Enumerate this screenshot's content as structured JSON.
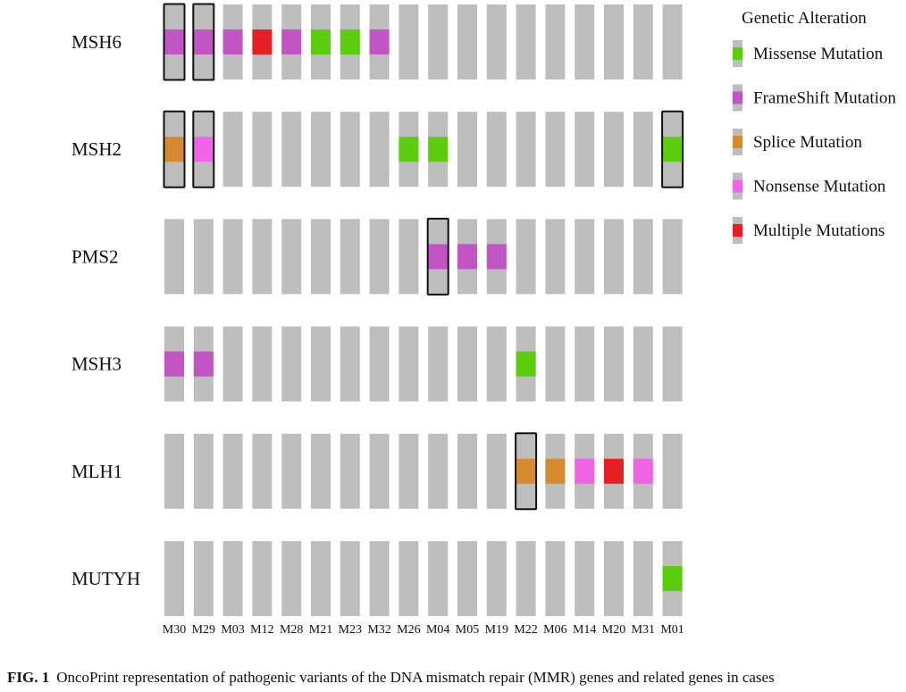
{
  "chart_data": {
    "type": "oncoprint",
    "title": "",
    "genes": [
      "MSH6",
      "MSH2",
      "PMS2",
      "MSH3",
      "MLH1",
      "MUTYH"
    ],
    "samples": [
      "M30",
      "M29",
      "M03",
      "M12",
      "M28",
      "M21",
      "M23",
      "M32",
      "M26",
      "M04",
      "M05",
      "M19",
      "M22",
      "M06",
      "M14",
      "M20",
      "M31",
      "M01"
    ],
    "legend": {
      "title": "Genetic Alteration",
      "items": [
        {
          "key": "missense",
          "label": "Missense Mutation",
          "color": "#5ccd0e"
        },
        {
          "key": "frameshift",
          "label": "FrameShift Mutation",
          "color": "#c155c4"
        },
        {
          "key": "splice",
          "label": "Splice Mutation",
          "color": "#d68a30"
        },
        {
          "key": "nonsense",
          "label": "Nonsense Mutation",
          "color": "#f065e6"
        },
        {
          "key": "multiple",
          "label": "Multiple Mutations",
          "color": "#e42024"
        }
      ]
    },
    "alterations": [
      {
        "gene": "MSH6",
        "sample": "M30",
        "type": "frameshift",
        "highlighted": true
      },
      {
        "gene": "MSH6",
        "sample": "M29",
        "type": "frameshift",
        "highlighted": true
      },
      {
        "gene": "MSH6",
        "sample": "M03",
        "type": "frameshift"
      },
      {
        "gene": "MSH6",
        "sample": "M12",
        "type": "multiple"
      },
      {
        "gene": "MSH6",
        "sample": "M28",
        "type": "frameshift"
      },
      {
        "gene": "MSH6",
        "sample": "M21",
        "type": "missense"
      },
      {
        "gene": "MSH6",
        "sample": "M23",
        "type": "missense"
      },
      {
        "gene": "MSH6",
        "sample": "M32",
        "type": "frameshift"
      },
      {
        "gene": "MSH2",
        "sample": "M30",
        "type": "splice",
        "highlighted": true
      },
      {
        "gene": "MSH2",
        "sample": "M29",
        "type": "nonsense",
        "highlighted": true
      },
      {
        "gene": "MSH2",
        "sample": "M26",
        "type": "missense"
      },
      {
        "gene": "MSH2",
        "sample": "M04",
        "type": "missense"
      },
      {
        "gene": "MSH2",
        "sample": "M01",
        "type": "missense",
        "highlighted": true
      },
      {
        "gene": "PMS2",
        "sample": "M04",
        "type": "frameshift",
        "highlighted": true
      },
      {
        "gene": "PMS2",
        "sample": "M05",
        "type": "frameshift"
      },
      {
        "gene": "PMS2",
        "sample": "M19",
        "type": "frameshift"
      },
      {
        "gene": "MSH3",
        "sample": "M30",
        "type": "frameshift"
      },
      {
        "gene": "MSH3",
        "sample": "M29",
        "type": "frameshift"
      },
      {
        "gene": "MSH3",
        "sample": "M22",
        "type": "missense"
      },
      {
        "gene": "MLH1",
        "sample": "M22",
        "type": "splice",
        "highlighted": true
      },
      {
        "gene": "MLH1",
        "sample": "M06",
        "type": "splice"
      },
      {
        "gene": "MLH1",
        "sample": "M14",
        "type": "nonsense"
      },
      {
        "gene": "MLH1",
        "sample": "M20",
        "type": "multiple"
      },
      {
        "gene": "MLH1",
        "sample": "M31",
        "type": "nonsense"
      },
      {
        "gene": "MUTYH",
        "sample": "M01",
        "type": "missense"
      }
    ],
    "background_color": "#bdbdbd",
    "highlight_border_color": "#111111"
  },
  "caption": {
    "label": "FIG. 1",
    "text": "OncoPrint representation of pathogenic variants of the DNA mismatch repair (MMR) genes and related genes in cases"
  }
}
